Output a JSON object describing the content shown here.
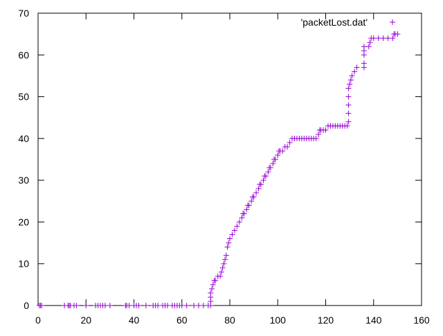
{
  "chart_data": {
    "type": "scatter",
    "title": "",
    "xlabel": "",
    "ylabel": "",
    "xlim": [
      0,
      160
    ],
    "ylim": [
      0,
      70
    ],
    "xticks": [
      0,
      20,
      40,
      60,
      80,
      100,
      120,
      140,
      160
    ],
    "yticks": [
      0,
      10,
      20,
      30,
      40,
      50,
      60,
      70
    ],
    "grid": false,
    "legend_position": "top-right",
    "marker": "plus",
    "series": [
      {
        "name": "'packetLost.dat'",
        "color": "#9400d3",
        "points": [
          [
            0.5,
            0
          ],
          [
            1,
            0
          ],
          [
            1.5,
            0
          ],
          [
            11,
            0
          ],
          [
            12.5,
            0
          ],
          [
            13,
            0
          ],
          [
            13.5,
            0
          ],
          [
            15,
            0
          ],
          [
            16,
            0
          ],
          [
            20,
            0
          ],
          [
            24,
            0
          ],
          [
            25,
            0
          ],
          [
            26,
            0
          ],
          [
            27,
            0
          ],
          [
            28,
            0
          ],
          [
            30,
            0
          ],
          [
            36.5,
            0
          ],
          [
            37,
            0
          ],
          [
            38,
            0
          ],
          [
            40,
            0
          ],
          [
            41,
            0
          ],
          [
            42,
            0
          ],
          [
            45,
            0
          ],
          [
            48,
            0
          ],
          [
            49,
            0
          ],
          [
            50,
            0
          ],
          [
            52,
            0
          ],
          [
            53,
            0
          ],
          [
            54,
            0
          ],
          [
            56,
            0
          ],
          [
            57,
            0
          ],
          [
            58,
            0
          ],
          [
            59,
            0
          ],
          [
            60,
            0
          ],
          [
            62,
            0
          ],
          [
            65,
            0
          ],
          [
            67,
            0
          ],
          [
            69,
            0
          ],
          [
            71,
            0
          ],
          [
            72,
            0
          ],
          [
            72,
            1
          ],
          [
            72,
            2
          ],
          [
            72,
            3
          ],
          [
            72.5,
            4
          ],
          [
            73,
            5
          ],
          [
            73.5,
            6
          ],
          [
            74,
            6
          ],
          [
            75,
            7
          ],
          [
            76,
            7
          ],
          [
            76.5,
            8
          ],
          [
            77,
            9
          ],
          [
            77.5,
            10
          ],
          [
            78,
            11
          ],
          [
            78.5,
            12
          ],
          [
            79,
            14
          ],
          [
            79.5,
            15
          ],
          [
            80,
            16
          ],
          [
            81,
            17
          ],
          [
            82,
            18
          ],
          [
            83,
            19
          ],
          [
            84,
            20
          ],
          [
            85,
            21
          ],
          [
            85.5,
            22
          ],
          [
            86,
            22
          ],
          [
            87,
            23
          ],
          [
            87.5,
            24
          ],
          [
            88,
            24
          ],
          [
            89,
            25
          ],
          [
            89.5,
            26
          ],
          [
            90,
            26
          ],
          [
            91,
            27
          ],
          [
            92,
            28
          ],
          [
            92.5,
            29
          ],
          [
            93,
            29
          ],
          [
            94,
            30
          ],
          [
            94.5,
            31
          ],
          [
            95,
            31
          ],
          [
            96,
            32
          ],
          [
            96.5,
            33
          ],
          [
            97,
            33
          ],
          [
            98,
            34
          ],
          [
            98.5,
            35
          ],
          [
            99,
            35
          ],
          [
            100,
            36
          ],
          [
            100.5,
            37
          ],
          [
            101,
            37
          ],
          [
            102,
            37
          ],
          [
            103,
            38
          ],
          [
            104,
            38
          ],
          [
            105,
            39
          ],
          [
            106,
            40
          ],
          [
            107,
            40
          ],
          [
            108,
            40
          ],
          [
            109,
            40
          ],
          [
            110,
            40
          ],
          [
            111,
            40
          ],
          [
            112,
            40
          ],
          [
            113,
            40
          ],
          [
            114,
            40
          ],
          [
            115,
            40
          ],
          [
            116,
            40
          ],
          [
            117,
            41
          ],
          [
            117.5,
            42
          ],
          [
            118,
            42
          ],
          [
            119,
            42
          ],
          [
            120,
            42
          ],
          [
            121,
            43
          ],
          [
            122,
            43
          ],
          [
            123,
            43
          ],
          [
            124,
            43
          ],
          [
            125,
            43
          ],
          [
            126,
            43
          ],
          [
            127,
            43
          ],
          [
            128,
            43
          ],
          [
            129,
            43
          ],
          [
            129.5,
            44
          ],
          [
            129.5,
            46
          ],
          [
            129.5,
            48
          ],
          [
            129.5,
            50
          ],
          [
            129.5,
            52
          ],
          [
            130,
            53
          ],
          [
            130.5,
            54
          ],
          [
            131,
            55
          ],
          [
            132,
            56
          ],
          [
            133,
            57
          ],
          [
            136,
            57
          ],
          [
            136,
            58
          ],
          [
            136,
            60
          ],
          [
            136,
            61
          ],
          [
            136,
            62
          ],
          [
            138,
            62
          ],
          [
            138.5,
            63
          ],
          [
            139,
            64
          ],
          [
            140,
            64
          ],
          [
            142,
            64
          ],
          [
            144,
            64
          ],
          [
            146,
            64
          ],
          [
            148,
            64
          ],
          [
            148.5,
            65
          ],
          [
            149,
            65
          ],
          [
            150,
            65
          ]
        ]
      }
    ]
  }
}
